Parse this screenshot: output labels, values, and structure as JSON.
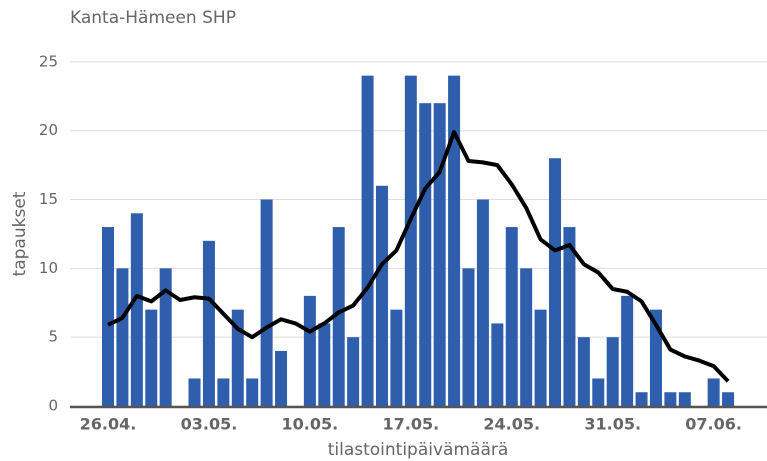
{
  "chart_data": {
    "type": "bar",
    "title": "Kanta-Hämeen SHP",
    "x_label": "tilastointipäivämäärä",
    "y_label": "tapaukset",
    "categories": [
      "26.04.",
      null,
      null,
      null,
      null,
      null,
      null,
      "03.05.",
      null,
      null,
      null,
      null,
      null,
      null,
      "10.05.",
      null,
      null,
      null,
      null,
      null,
      null,
      "17.05.",
      null,
      null,
      null,
      null,
      null,
      null,
      "24.05.",
      null,
      null,
      null,
      null,
      null,
      null,
      "31.05.",
      null,
      null,
      null,
      null,
      null,
      null,
      "07.06.",
      null
    ],
    "series": [
      {
        "style": "bar",
        "color": "#2f5fac",
        "values": [
          13,
          10,
          14,
          7,
          10,
          0,
          2,
          12,
          2,
          7,
          2,
          15,
          4,
          0,
          8,
          6,
          13,
          5,
          24,
          16,
          7,
          24,
          22,
          22,
          24,
          10,
          15,
          6,
          13,
          10,
          7,
          18,
          13,
          5,
          2,
          5,
          8,
          1,
          7,
          1,
          1,
          0,
          2,
          1
        ]
      },
      {
        "style": "line",
        "color": "#000000",
        "values": [
          5.9,
          6.4,
          8.0,
          7.6,
          8.4,
          7.7,
          7.9,
          7.8,
          6.7,
          5.6,
          5.0,
          5.7,
          6.3,
          6.0,
          5.4,
          6.0,
          6.8,
          7.3,
          8.6,
          10.3,
          11.3,
          13.6,
          15.8,
          17.0,
          19.9,
          17.8,
          17.7,
          17.5,
          16.1,
          14.4,
          12.1,
          11.3,
          11.7,
          10.3,
          9.7,
          8.5,
          8.3,
          7.6,
          5.9,
          4.1,
          3.6,
          3.3,
          2.9,
          1.8
        ]
      }
    ],
    "ylim": [
      0,
      25.5
    ],
    "yticks": [
      0,
      5,
      10,
      15,
      20,
      25
    ],
    "grid": true
  }
}
